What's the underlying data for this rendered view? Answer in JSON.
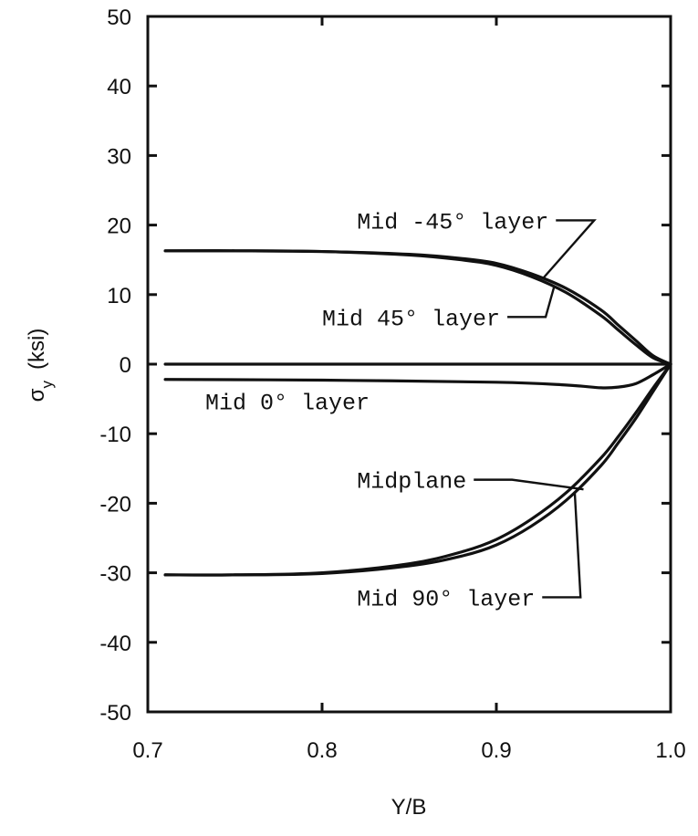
{
  "chart_data": {
    "type": "line",
    "xlabel": "Y/B",
    "ylabel_main": "σ",
    "ylabel_sub": "y",
    "ylabel_unit": "(ksi)",
    "xlim": [
      0.7,
      1.0
    ],
    "ylim": [
      -50,
      50
    ],
    "xticks": [
      0.7,
      0.8,
      0.9,
      1.0
    ],
    "xtick_labels": [
      "0.7",
      "0.8",
      "0.9",
      "1.0"
    ],
    "yticks": [
      50,
      40,
      30,
      20,
      10,
      0,
      -10,
      -20,
      -30,
      -40,
      -50
    ],
    "ytick_labels": [
      "50",
      "40",
      "30",
      "20",
      "10",
      "0",
      "-10",
      "-20",
      "-30",
      "-40",
      "-50"
    ],
    "grid": false,
    "series": [
      {
        "name": "Mid -45° layer",
        "x": [
          0.71,
          0.75,
          0.8,
          0.85,
          0.88,
          0.9,
          0.92,
          0.94,
          0.96,
          0.97,
          0.98,
          0.99,
          1.0
        ],
        "y": [
          16.3,
          16.3,
          16.2,
          15.8,
          15.2,
          14.5,
          13.0,
          10.9,
          7.8,
          5.6,
          3.4,
          1.2,
          0.0
        ]
      },
      {
        "name": "Mid 45° layer",
        "x": [
          0.71,
          0.75,
          0.8,
          0.85,
          0.88,
          0.9,
          0.92,
          0.94,
          0.96,
          0.97,
          0.98,
          0.99,
          1.0
        ],
        "y": [
          16.3,
          16.3,
          16.2,
          15.7,
          15.0,
          14.2,
          12.6,
          10.3,
          7.0,
          4.9,
          2.8,
          0.9,
          0.0
        ]
      },
      {
        "name": "Mid 0° layer",
        "x": [
          0.71,
          0.8,
          0.9,
          0.94,
          0.96,
          0.97,
          0.98,
          0.99,
          1.0
        ],
        "y": [
          -2.2,
          -2.3,
          -2.6,
          -3.0,
          -3.4,
          -3.3,
          -2.8,
          -1.5,
          0.0
        ]
      },
      {
        "name": "Midplane",
        "x": [
          0.71,
          0.75,
          0.8,
          0.85,
          0.88,
          0.9,
          0.92,
          0.94,
          0.96,
          0.97,
          0.98,
          0.99,
          1.0
        ],
        "y": [
          -30.3,
          -30.3,
          -30.0,
          -28.7,
          -27.0,
          -25.2,
          -22.3,
          -18.5,
          -13.5,
          -10.4,
          -7.0,
          -3.4,
          0.0
        ]
      },
      {
        "name": "Mid 90° layer",
        "x": [
          0.71,
          0.75,
          0.8,
          0.85,
          0.88,
          0.9,
          0.92,
          0.94,
          0.96,
          0.97,
          0.98,
          0.99,
          1.0
        ],
        "y": [
          -30.3,
          -30.3,
          -30.1,
          -29.0,
          -27.6,
          -26.0,
          -23.3,
          -19.6,
          -14.6,
          -11.3,
          -7.8,
          -3.9,
          0.0
        ]
      },
      {
        "name": "zero line",
        "x": [
          0.71,
          1.0
        ],
        "y": [
          0.0,
          0.0
        ]
      }
    ],
    "annotations": [
      {
        "text": "Mid -45° layer",
        "x": 0.82,
        "y": 19.5,
        "target": [
          0.927,
          12.4
        ]
      },
      {
        "text": "Mid 45° layer",
        "x": 0.8,
        "y": 5.6,
        "target": [
          0.933,
          11.0
        ]
      },
      {
        "text": "Mid 0° layer",
        "x": 0.733,
        "y": -6.5,
        "target": null
      },
      {
        "text": "Midplane",
        "x": 0.82,
        "y": -17.8,
        "target": [
          0.95,
          -18.0
        ]
      },
      {
        "text": "Mid 90° layer",
        "x": 0.82,
        "y": -34.7,
        "target": [
          0.945,
          -18.5
        ]
      }
    ]
  }
}
